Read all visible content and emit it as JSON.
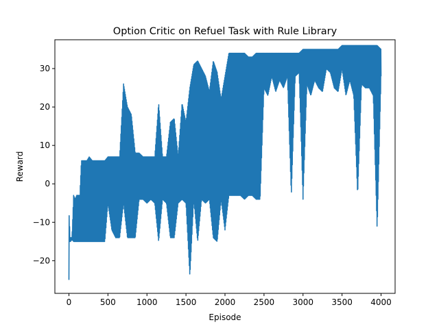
{
  "chart_data": {
    "type": "line",
    "title": "Option Critic on Refuel Task with Rule Library",
    "xlabel": "Episode",
    "ylabel": "Reward",
    "xlim": [
      -180,
      4180
    ],
    "ylim": [
      -28.5,
      37.5
    ],
    "xticks": [
      0,
      500,
      1000,
      1500,
      2000,
      2500,
      3000,
      3500,
      4000
    ],
    "xtick_labels": [
      "0",
      "500",
      "1000",
      "1500",
      "2000",
      "2500",
      "3000",
      "3500",
      "4000"
    ],
    "yticks": [
      -20,
      -10,
      0,
      10,
      20,
      30
    ],
    "ytick_labels": [
      "−20",
      "−10",
      "0",
      "10",
      "20",
      "30"
    ],
    "grid": false,
    "legend": "none",
    "color": "#1f77b4",
    "series": [
      {
        "x": [
          0,
          5,
          10,
          20,
          40,
          60,
          80,
          100,
          120,
          140,
          160,
          180,
          200,
          230,
          260,
          300,
          340,
          380,
          420,
          460,
          500,
          550,
          600,
          650,
          700,
          750,
          800,
          850,
          900,
          950,
          1000,
          1050,
          1100,
          1150,
          1200,
          1250,
          1300,
          1350,
          1400,
          1450,
          1500,
          1550,
          1600,
          1650,
          1700,
          1750,
          1800,
          1850,
          1900,
          1950,
          2000,
          2050,
          2100,
          2150,
          2200,
          2250,
          2300,
          2350,
          2400,
          2450,
          2500,
          2550,
          2600,
          2650,
          2700,
          2750,
          2800,
          2850,
          2900,
          2950,
          3000,
          3050,
          3100,
          3150,
          3200,
          3250,
          3300,
          3350,
          3400,
          3450,
          3500,
          3550,
          3600,
          3650,
          3700,
          3750,
          3800,
          3850,
          3900,
          3950,
          4000
        ],
        "lo": [
          -25,
          -15,
          -15,
          -15,
          -14.5,
          -15,
          -15,
          -15,
          -15,
          -15,
          -15,
          -15,
          -15,
          -15,
          -15,
          -15,
          -15,
          -15,
          -15,
          -15,
          -5,
          -12,
          -14,
          -14,
          -5,
          -14,
          -14,
          -14,
          -4,
          -4,
          -5,
          -4,
          -5,
          -15,
          -4,
          -5,
          -14,
          -14,
          -5,
          -4,
          -5,
          -24,
          -4,
          -15,
          -4,
          -5,
          -4,
          -14,
          -15,
          -4,
          -12,
          -3,
          -3,
          -3,
          -3,
          -4,
          -3,
          -3,
          -4,
          -4,
          25,
          23,
          28,
          24,
          27,
          25,
          28,
          -3,
          28,
          29,
          -4,
          26,
          23,
          27,
          25,
          24,
          30,
          29,
          25,
          24,
          30,
          23,
          27,
          23,
          -3,
          26,
          25,
          25,
          23,
          -12,
          28
        ],
        "hi": [
          -14,
          -4,
          -14,
          -14,
          -14,
          -3,
          -4,
          -3,
          -3,
          -3,
          6,
          6,
          6,
          6,
          7,
          6,
          6,
          6,
          6,
          6,
          7,
          7,
          7,
          7,
          26,
          20,
          18,
          8,
          8,
          7,
          7,
          7,
          7,
          21,
          7,
          7,
          16,
          17,
          7,
          21,
          16,
          25,
          31,
          32,
          30,
          28,
          24,
          32,
          29,
          22,
          28,
          34,
          34,
          34,
          34,
          34,
          33,
          33,
          34,
          34,
          34,
          34,
          34,
          34,
          34,
          34,
          34,
          34,
          34,
          34,
          35,
          35,
          35,
          35,
          35,
          35,
          35,
          35,
          35,
          35,
          36,
          36,
          36,
          36,
          36,
          36,
          36,
          36,
          36,
          36,
          35
        ]
      }
    ]
  }
}
